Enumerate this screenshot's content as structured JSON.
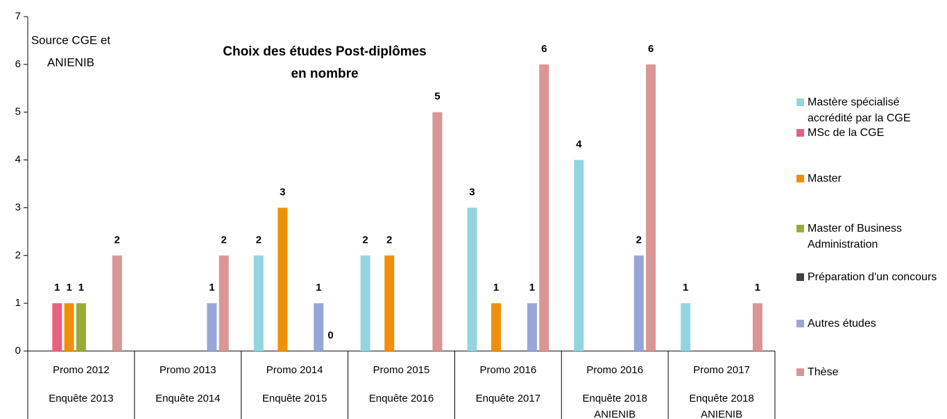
{
  "chart_data": {
    "type": "bar",
    "title": [
      "Choix des études Post-diplômes",
      "en nombre"
    ],
    "annotation": [
      "Source CGE et",
      "ANIENIB"
    ],
    "categories": [
      [
        "Promo 2012",
        "Enquête 2013"
      ],
      [
        "Promo 2013",
        "Enquête 2014"
      ],
      [
        "Promo 2014",
        "Enquête 2015"
      ],
      [
        "Promo 2015",
        "Enquête 2016"
      ],
      [
        "Promo 2016",
        "Enquête 2017"
      ],
      [
        "Promo 2016",
        "Enquête  2018",
        "ANIENIB"
      ],
      [
        "Promo 2017",
        "Enquête  2018",
        "ANIENIB"
      ]
    ],
    "series": [
      {
        "name": "Mastère spécialisé accrédité par la CGE",
        "color": "#92d5e0",
        "values": [
          null,
          null,
          2,
          2,
          3,
          4,
          1
        ]
      },
      {
        "name": "MSc de la CGE",
        "color": "#e8607f",
        "values": [
          1,
          null,
          null,
          null,
          null,
          null,
          null
        ]
      },
      {
        "name": "Master",
        "color": "#f0900a",
        "values": [
          1,
          null,
          3,
          2,
          1,
          null,
          null
        ]
      },
      {
        "name": "Master of Business Administration",
        "color": "#9aab3a",
        "values": [
          1,
          null,
          null,
          null,
          null,
          null,
          null
        ]
      },
      {
        "name": "Préparation d'un concours",
        "color": "#404040",
        "values": [
          null,
          null,
          null,
          null,
          null,
          null,
          null
        ]
      },
      {
        "name": "Autres études",
        "color": "#97a6d6",
        "values": [
          null,
          1,
          1,
          null,
          1,
          2,
          null
        ]
      },
      {
        "name": "Thèse",
        "color": "#d99694",
        "values": [
          2,
          2,
          0,
          5,
          6,
          6,
          1
        ]
      }
    ],
    "ylim": [
      0,
      7
    ],
    "yticks": [
      0,
      1,
      2,
      3,
      4,
      5,
      6,
      7
    ],
    "grid": false,
    "legend": "right"
  }
}
